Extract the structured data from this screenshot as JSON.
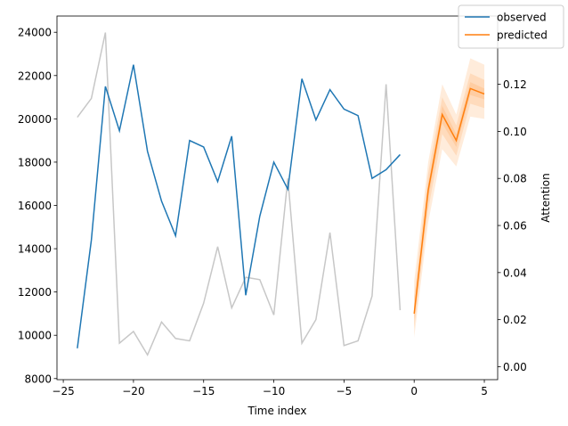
{
  "chart_data": {
    "type": "line",
    "title": "",
    "xlabel": "Time index",
    "ylabel": "",
    "y2label": "Attention",
    "xlim": [
      -25.45,
      5.95
    ],
    "ylim": [
      7950,
      24750
    ],
    "y2lim": [
      -0.0055,
      0.149
    ],
    "x_ticks": [
      -25,
      -20,
      -15,
      -10,
      -5,
      0,
      5
    ],
    "y_ticks": [
      8000,
      10000,
      12000,
      14000,
      16000,
      18000,
      20000,
      22000,
      24000
    ],
    "y2_ticks": [
      0.0,
      0.02,
      0.04,
      0.06,
      0.08,
      0.1,
      0.12
    ],
    "y2_tick_labels": [
      "0.00",
      "0.02",
      "0.04",
      "0.06",
      "0.08",
      "0.10",
      "0.12"
    ],
    "legend": {
      "position": "top-right",
      "entries": [
        "observed",
        "predicted"
      ]
    },
    "colors": {
      "observed": "#1f77b4",
      "predicted": "#ff7f0e",
      "attention": "#c7c7c7",
      "band": "#ff7f0e"
    },
    "series": [
      {
        "name": "observed",
        "x": [
          -24,
          -23,
          -22,
          -21,
          -20,
          -19,
          -18,
          -17,
          -16,
          -15,
          -14,
          -13,
          -12,
          -11,
          -10,
          -9,
          -8,
          -7,
          -6,
          -5,
          -4,
          -3,
          -2,
          -1
        ],
        "values": [
          9400,
          14400,
          21500,
          19450,
          22500,
          18500,
          16200,
          14600,
          19000,
          18700,
          17100,
          19200,
          11850,
          15500,
          18000,
          16750,
          21850,
          19950,
          21350,
          20450,
          20150,
          17250,
          17650,
          18350
        ]
      },
      {
        "name": "predicted",
        "x": [
          0,
          1,
          2,
          3,
          4,
          5
        ],
        "values": [
          11000,
          16700,
          20200,
          19000,
          21400,
          21150
        ],
        "bands": [
          {
            "lower": [
              9900,
              15200,
              18600,
              17800,
              20100,
              20000
            ],
            "upper": [
              12500,
              18000,
              21600,
              20200,
              22800,
              22500
            ]
          },
          {
            "lower": [
              10300,
              15800,
              19300,
              18300,
              20700,
              20500
            ],
            "upper": [
              11800,
              17500,
              21000,
              19700,
              22100,
              21800
            ]
          },
          {
            "lower": [
              10700,
              16300,
              19800,
              18700,
              21100,
              20900
            ],
            "upper": [
              11300,
              17000,
              20600,
              19300,
              21700,
              21400
            ]
          }
        ]
      },
      {
        "name": "attention",
        "axis": "right",
        "x": [
          -24,
          -23,
          -22,
          -21,
          -20,
          -19,
          -18,
          -17,
          -16,
          -15,
          -14,
          -13,
          -12,
          -11,
          -10,
          -9,
          -8,
          -7,
          -6,
          -5,
          -4,
          -3,
          -2,
          -1
        ],
        "values": [
          0.106,
          0.114,
          0.142,
          0.01,
          0.015,
          0.005,
          0.019,
          0.012,
          0.011,
          0.027,
          0.051,
          0.025,
          0.038,
          0.037,
          0.022,
          0.08,
          0.01,
          0.02,
          0.057,
          0.009,
          0.011,
          0.03,
          0.12,
          0.024
        ]
      }
    ]
  }
}
